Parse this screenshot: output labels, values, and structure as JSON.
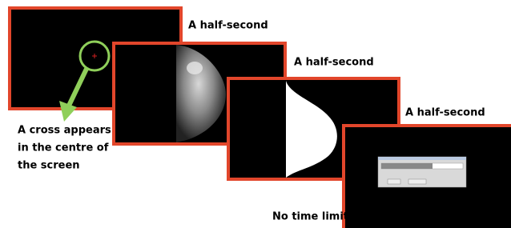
{
  "steps": [
    {
      "duration": "A half-second"
    },
    {
      "duration": "A half-second"
    },
    {
      "duration": "A half-second"
    },
    {
      "duration": "No time limit"
    }
  ],
  "annotation": {
    "lines": [
      "A cross appears",
      "in the centre of",
      "the screen"
    ]
  }
}
